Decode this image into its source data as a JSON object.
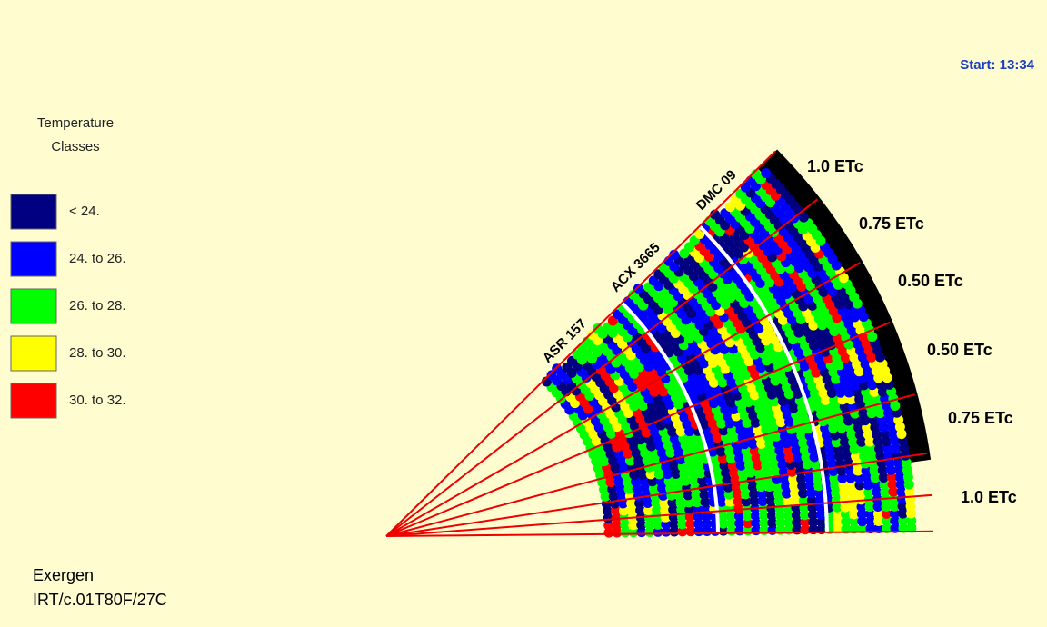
{
  "header": {
    "start": "Start: 13:34"
  },
  "legend": {
    "title_lines": [
      "Temperature",
      "Classes"
    ],
    "items": [
      {
        "label": "< 24.",
        "color": "#000080"
      },
      {
        "label": "24. to 26.",
        "color": "#0000ff"
      },
      {
        "label": "26. to 28.",
        "color": "#00ff00"
      },
      {
        "label": "28. to 30.",
        "color": "#ffff00"
      },
      {
        "label": "30. to 32.",
        "color": "#ff0000"
      }
    ]
  },
  "cultivars": [
    "ASR 157",
    "ACX 3665",
    "DMC 09"
  ],
  "treatments": [
    "1.0 ETc",
    "0.75 ETc",
    "0.50 ETc",
    "0.50 ETc",
    "0.75 ETc",
    "1.0 ETc"
  ],
  "footer": [
    "Exergen",
    "IRT/c.01T80F/27C"
  ]
}
